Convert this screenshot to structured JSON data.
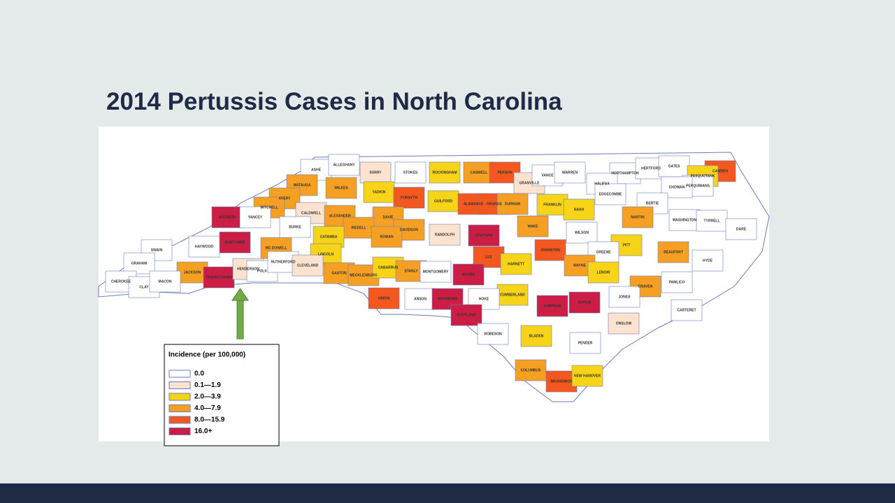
{
  "title": "2014 Pertussis Cases in North Carolina",
  "legend": {
    "title": "Incidence (per 100,000)",
    "items": [
      {
        "label": "0.0",
        "color": "#ffffff"
      },
      {
        "label": "0.1—1.9",
        "color": "#fbe3d0"
      },
      {
        "label": "2.0—3.9",
        "color": "#f7d417"
      },
      {
        "label": "4.0—7.9",
        "color": "#f6a023"
      },
      {
        "label": "8.0—15.9",
        "color": "#f4581e"
      },
      {
        "label": "16.0+",
        "color": "#cc1e45"
      }
    ]
  },
  "counties": [
    {
      "name": "ASHE",
      "color": "#ffffff"
    },
    {
      "name": "ALLEGHANY",
      "color": "#ffffff"
    },
    {
      "name": "SURRY",
      "color": "#fbe3d0"
    },
    {
      "name": "STOKES",
      "color": "#ffffff"
    },
    {
      "name": "ROCKINGHAM",
      "color": "#f7d417"
    },
    {
      "name": "CASWELL",
      "color": "#f6a023"
    },
    {
      "name": "PERSON",
      "color": "#f4581e"
    },
    {
      "name": "GRANVILLE",
      "color": "#fbe3d0"
    },
    {
      "name": "VANCE",
      "color": "#ffffff"
    },
    {
      "name": "WARREN",
      "color": "#ffffff"
    },
    {
      "name": "NORTHAMPTON",
      "color": "#ffffff"
    },
    {
      "name": "HERTFORD",
      "color": "#ffffff"
    },
    {
      "name": "GATES",
      "color": "#ffffff"
    },
    {
      "name": "CAMDEN",
      "color": "#f4581e"
    },
    {
      "name": "PASQUOTANK",
      "color": "#f7d417"
    },
    {
      "name": "PERQUIMANS",
      "color": "#ffffff"
    },
    {
      "name": "CHOWAN",
      "color": "#ffffff"
    },
    {
      "name": "WATAUGA",
      "color": "#f6a023"
    },
    {
      "name": "WILKES",
      "color": "#f6a023"
    },
    {
      "name": "YADKIN",
      "color": "#f7d417"
    },
    {
      "name": "FORSYTH",
      "color": "#f4581e"
    },
    {
      "name": "GUILFORD",
      "color": "#f7d417"
    },
    {
      "name": "ALAMANCE",
      "color": "#f4581e"
    },
    {
      "name": "ORANGE",
      "color": "#f4581e"
    },
    {
      "name": "DURHAM",
      "color": "#f6a023"
    },
    {
      "name": "FRANKLIN",
      "color": "#f7d417"
    },
    {
      "name": "NASH",
      "color": "#f7d417"
    },
    {
      "name": "HALIFAX",
      "color": "#ffffff"
    },
    {
      "name": "BERTIE",
      "color": "#ffffff"
    },
    {
      "name": "AVERY",
      "color": "#f6a023"
    },
    {
      "name": "MITCHELL",
      "color": "#f6a023"
    },
    {
      "name": "CALDWELL",
      "color": "#fbe3d0"
    },
    {
      "name": "ALEXANDER",
      "color": "#f6a023"
    },
    {
      "name": "DAVIE",
      "color": "#f6a023"
    },
    {
      "name": "IREDELL",
      "color": "#f6a023"
    },
    {
      "name": "DAVIDSON",
      "color": "#f6a023"
    },
    {
      "name": "RANDOLPH",
      "color": "#fbe3d0"
    },
    {
      "name": "CHATHAM",
      "color": "#cc1e45"
    },
    {
      "name": "WAKE",
      "color": "#f6a023"
    },
    {
      "name": "EDGECOMBE",
      "color": "#ffffff"
    },
    {
      "name": "MARTIN",
      "color": "#f6a023"
    },
    {
      "name": "WASHINGTON",
      "color": "#ffffff"
    },
    {
      "name": "TYRRELL",
      "color": "#ffffff"
    },
    {
      "name": "DARE",
      "color": "#ffffff"
    },
    {
      "name": "MADISON",
      "color": "#cc1e45"
    },
    {
      "name": "YANCEY",
      "color": "#ffffff"
    },
    {
      "name": "MC DOWELL",
      "color": "#f6a023"
    },
    {
      "name": "BURKE",
      "color": "#ffffff"
    },
    {
      "name": "BUNCOMBE",
      "color": "#cc1e45"
    },
    {
      "name": "HAYWOOD",
      "color": "#ffffff"
    },
    {
      "name": "SWAIN",
      "color": "#ffffff"
    },
    {
      "name": "GRAHAM",
      "color": "#ffffff"
    },
    {
      "name": "CATAWBA",
      "color": "#f7d417"
    },
    {
      "name": "ROWAN",
      "color": "#f6a023"
    },
    {
      "name": "WILSON",
      "color": "#ffffff"
    },
    {
      "name": "PITT",
      "color": "#f7d417"
    },
    {
      "name": "BEAUFORT",
      "color": "#f6a023"
    },
    {
      "name": "JOHNSTON",
      "color": "#f4581e"
    },
    {
      "name": "GREENE",
      "color": "#ffffff"
    },
    {
      "name": "LINCOLN",
      "color": "#f7d417"
    },
    {
      "name": "LEE",
      "color": "#f4581e"
    },
    {
      "name": "HARNETT",
      "color": "#f7d417"
    },
    {
      "name": "WAYNE",
      "color": "#f6a023"
    },
    {
      "name": "LENOIR",
      "color": "#f7d417"
    },
    {
      "name": "CRAVEN",
      "color": "#f6a023"
    },
    {
      "name": "PAMLICO",
      "color": "#ffffff"
    },
    {
      "name": "HYDE",
      "color": "#ffffff"
    },
    {
      "name": "JACKSON",
      "color": "#f6a023"
    },
    {
      "name": "TRANSYLVANIA",
      "color": "#cc1e45"
    },
    {
      "name": "HENDERSON",
      "color": "#fbe3d0"
    },
    {
      "name": "POLK",
      "color": "#ffffff"
    },
    {
      "name": "RUTHERFORD",
      "color": "#ffffff"
    },
    {
      "name": "CLEVELAND",
      "color": "#fbe3d0"
    },
    {
      "name": "GASTON",
      "color": "#f6a023"
    },
    {
      "name": "MECKLENBURG",
      "color": "#f6a023"
    },
    {
      "name": "CABARRUS",
      "color": "#f7d417"
    },
    {
      "name": "STANLY",
      "color": "#f6a023"
    },
    {
      "name": "MONTGOMERY",
      "color": "#ffffff"
    },
    {
      "name": "MOORE",
      "color": "#cc1e45"
    },
    {
      "name": "CUMBERLAND",
      "color": "#f7d417"
    },
    {
      "name": "SAMPSON",
      "color": "#cc1e45"
    },
    {
      "name": "DUPLIN",
      "color": "#cc1e45"
    },
    {
      "name": "JONES",
      "color": "#ffffff"
    },
    {
      "name": "CARTERET",
      "color": "#ffffff"
    },
    {
      "name": "ONSLOW",
      "color": "#fbe3d0"
    },
    {
      "name": "CHEROKEE",
      "color": "#ffffff"
    },
    {
      "name": "CLAY",
      "color": "#ffffff"
    },
    {
      "name": "MACON",
      "color": "#ffffff"
    },
    {
      "name": "UNION",
      "color": "#f4581e"
    },
    {
      "name": "ANSON",
      "color": "#ffffff"
    },
    {
      "name": "RICHMOND",
      "color": "#cc1e45"
    },
    {
      "name": "HOKE",
      "color": "#ffffff"
    },
    {
      "name": "SCOTLAND",
      "color": "#cc1e45"
    },
    {
      "name": "ROBESON",
      "color": "#ffffff"
    },
    {
      "name": "BLADEN",
      "color": "#f7d417"
    },
    {
      "name": "PENDER",
      "color": "#ffffff"
    },
    {
      "name": "COLUMBUS",
      "color": "#f6a023"
    },
    {
      "name": "BRUNSWICK",
      "color": "#f4581e"
    },
    {
      "name": "NEW HANOVER",
      "color": "#f7d417"
    }
  ]
}
